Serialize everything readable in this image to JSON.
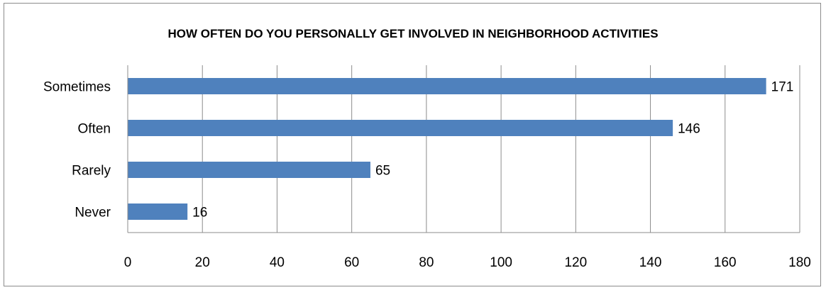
{
  "chart_data": {
    "type": "bar",
    "orientation": "horizontal",
    "title": "HOW OFTEN DO YOU PERSONALLY GET INVOLVED IN NEIGHBORHOOD ACTIVITIES",
    "categories": [
      "Sometimes",
      "Often",
      "Rarely",
      "Never"
    ],
    "values": [
      171,
      146,
      65,
      16
    ],
    "xlabel": "",
    "ylabel": "",
    "xlim": [
      0,
      180
    ],
    "xticks": [
      "0",
      "20",
      "40",
      "60",
      "80",
      "100",
      "120",
      "140",
      "160",
      "180"
    ],
    "grid": "vertical",
    "legend": "none",
    "data_labels": true,
    "colors": {
      "bar": "#4f81bd",
      "grid": "#8c8c8c",
      "axis": "#8c8c8c",
      "border": "#8c8c8c"
    }
  }
}
